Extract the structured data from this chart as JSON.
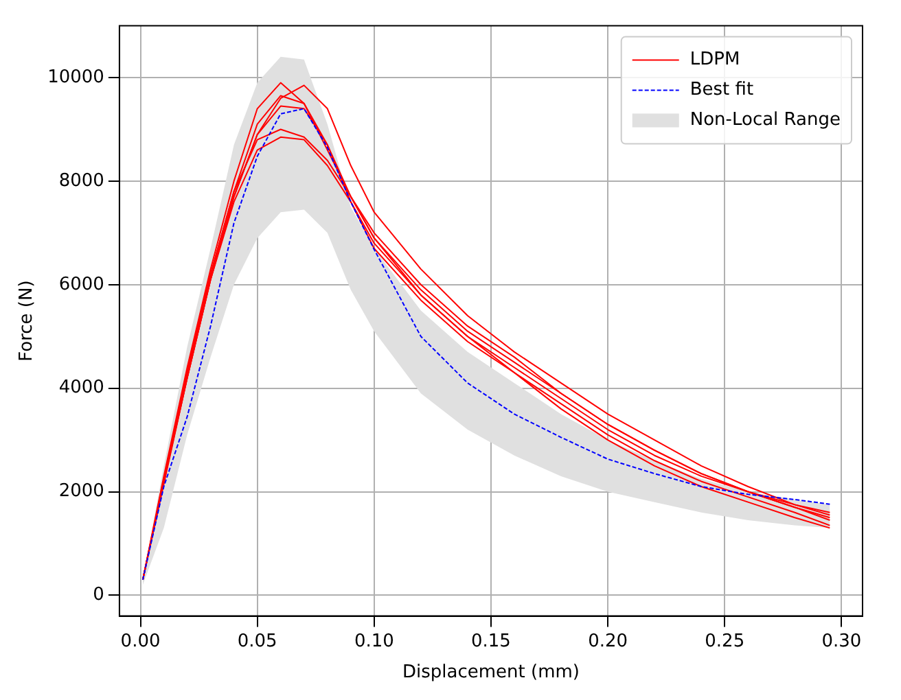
{
  "chart_data": {
    "type": "line",
    "xlabel": "Displacement (mm)",
    "ylabel": "Force (N)",
    "x": [
      0.001,
      0.01,
      0.02,
      0.03,
      0.04,
      0.05,
      0.06,
      0.07,
      0.08,
      0.09,
      0.1,
      0.12,
      0.14,
      0.16,
      0.18,
      0.2,
      0.22,
      0.24,
      0.26,
      0.28,
      0.295
    ],
    "series": [
      {
        "name": "LDPM",
        "color": "#ff0000",
        "values": [
          300,
          2300,
          4400,
          6300,
          8000,
          9400,
          9900,
          9500,
          8600,
          7700,
          6900,
          5800,
          5000,
          4400,
          3800,
          3200,
          2700,
          2300,
          2000,
          1700,
          1450
        ]
      },
      {
        "color": "#ff0000",
        "values": [
          300,
          2200,
          4200,
          6100,
          7700,
          8900,
          9600,
          9850,
          9400,
          8300,
          7400,
          6300,
          5400,
          4700,
          4100,
          3500,
          3000,
          2500,
          2100,
          1750,
          1550
        ]
      },
      {
        "color": "#ff0000",
        "values": [
          300,
          2250,
          4300,
          6200,
          7800,
          9100,
          9650,
          9500,
          8700,
          7600,
          6700,
          5700,
          4900,
          4300,
          3700,
          3100,
          2600,
          2200,
          1900,
          1600,
          1350
        ]
      },
      {
        "color": "#ff0000",
        "values": [
          300,
          2200,
          4300,
          6200,
          7800,
          8800,
          9000,
          8850,
          8400,
          7700,
          7000,
          6000,
          5200,
          4600,
          3900,
          3300,
          2800,
          2350,
          2000,
          1700,
          1500
        ]
      },
      {
        "color": "#ff0000",
        "values": [
          300,
          2150,
          4200,
          6100,
          7600,
          8600,
          8850,
          8800,
          8300,
          7600,
          6800,
          5800,
          5000,
          4300,
          3600,
          3000,
          2500,
          2100,
          1800,
          1500,
          1300
        ]
      },
      {
        "color": "#ff0000",
        "values": [
          300,
          2200,
          4200,
          6100,
          7700,
          8900,
          9450,
          9400,
          8700,
          7700,
          6900,
          5900,
          5100,
          4500,
          3900,
          3300,
          2800,
          2350,
          2000,
          1750,
          1600
        ]
      },
      {
        "name": "Best fit",
        "color": "#0000ff",
        "line_style": "dashed",
        "values": [
          300,
          2100,
          3450,
          5200,
          7190,
          8480,
          9300,
          9400,
          8650,
          7600,
          6680,
          5000,
          4100,
          3500,
          3050,
          2630,
          2350,
          2100,
          1950,
          1850,
          1760
        ]
      },
      {
        "name": "Non-Local Range",
        "type": "area",
        "color": "#e0e0e0",
        "values": [
          null,
          null,
          null,
          null,
          null,
          null,
          null,
          null,
          null,
          null,
          null,
          null,
          null,
          null,
          null,
          null,
          null,
          null,
          null,
          null,
          null
        ],
        "lower": [
          200,
          1300,
          3100,
          4600,
          6000,
          6900,
          7400,
          7450,
          7000,
          5900,
          5100,
          3900,
          3200,
          2700,
          2300,
          2000,
          1800,
          1600,
          1450,
          1350,
          1300
        ],
        "upper": [
          300,
          2500,
          4800,
          6700,
          8700,
          9900,
          10400,
          10350,
          9100,
          7500,
          6700,
          5500,
          4700,
          4100,
          3500,
          3000,
          2600,
          2250,
          2000,
          1850,
          1750
        ]
      }
    ],
    "xlim": [
      -0.009,
      0.309
    ],
    "xticks": [
      {
        "value": 0,
        "label": "0.00"
      },
      {
        "value": 0.05,
        "label": "0.05"
      },
      {
        "value": 0.1,
        "label": "0.10"
      },
      {
        "value": 0.15,
        "label": "0.15"
      },
      {
        "value": 0.2,
        "label": "0.20"
      },
      {
        "value": 0.25,
        "label": "0.25"
      },
      {
        "value": 0.3,
        "label": "0.30"
      }
    ],
    "ylim": [
      -400,
      11000
    ],
    "yticks": [
      0,
      2000,
      4000,
      6000,
      8000,
      10000
    ],
    "grid": true,
    "legend": "top right",
    "marker": "none"
  }
}
